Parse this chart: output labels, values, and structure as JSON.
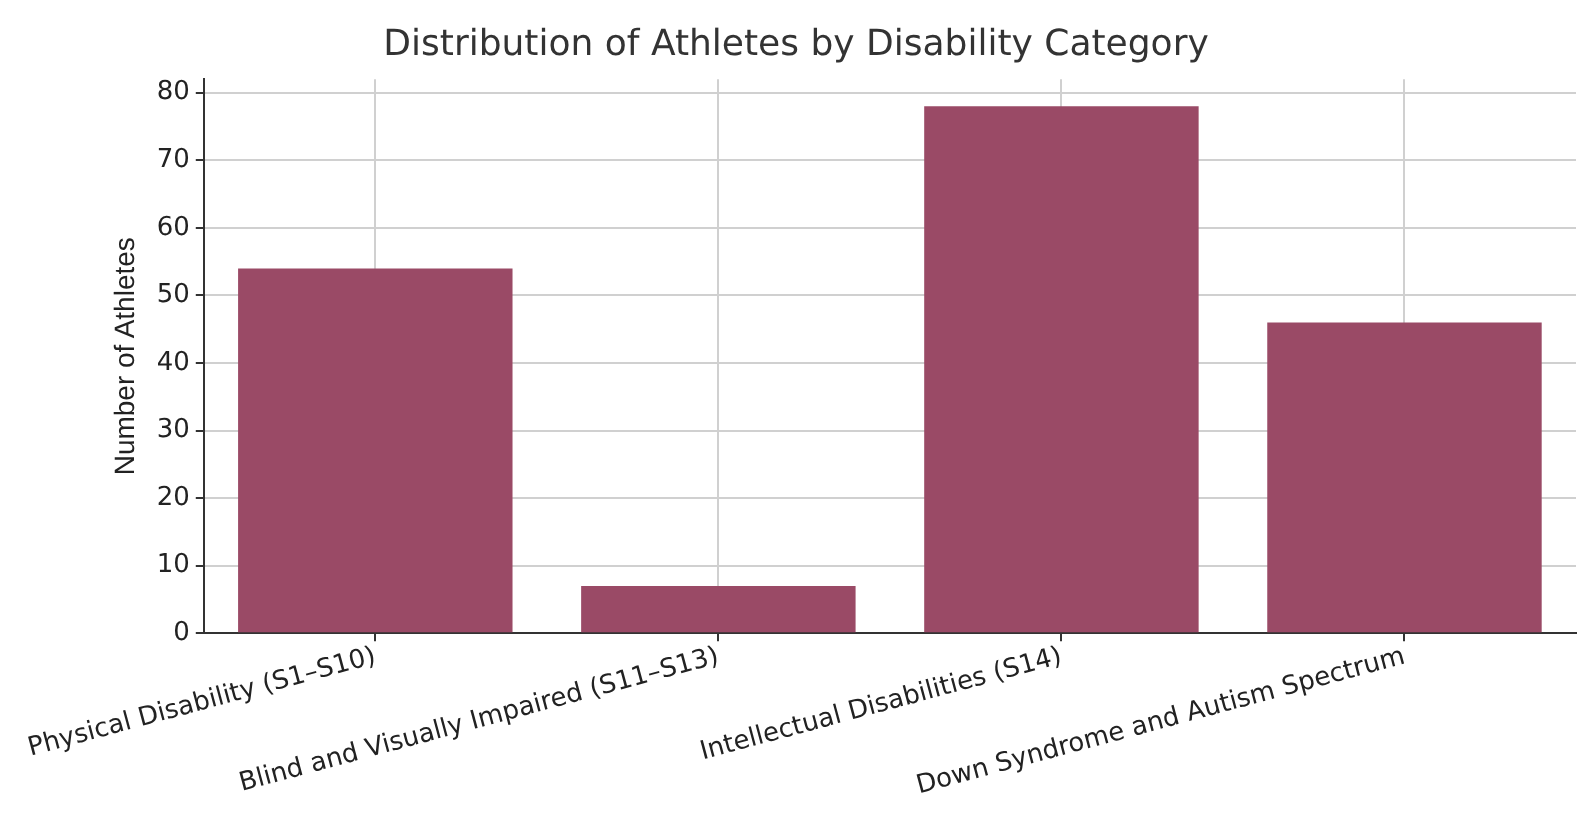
{
  "chart_data": {
    "type": "bar",
    "title": "Distribution of Athletes by Disability Category",
    "ylabel": "Number of Athletes",
    "categories": [
      "Physical Disability (S1–S10)",
      "Blind and Visually Impaired (S11–S13)",
      "Intellectual Disabilities (S14)",
      "Down Syndrome and Autism Spectrum"
    ],
    "values": [
      54,
      7,
      78,
      46
    ],
    "color": "#9a4a66",
    "ylim": [
      0,
      82
    ],
    "yticks": [
      0,
      10,
      20,
      30,
      40,
      50,
      60,
      70,
      80
    ],
    "grid": true,
    "legend": false
  }
}
